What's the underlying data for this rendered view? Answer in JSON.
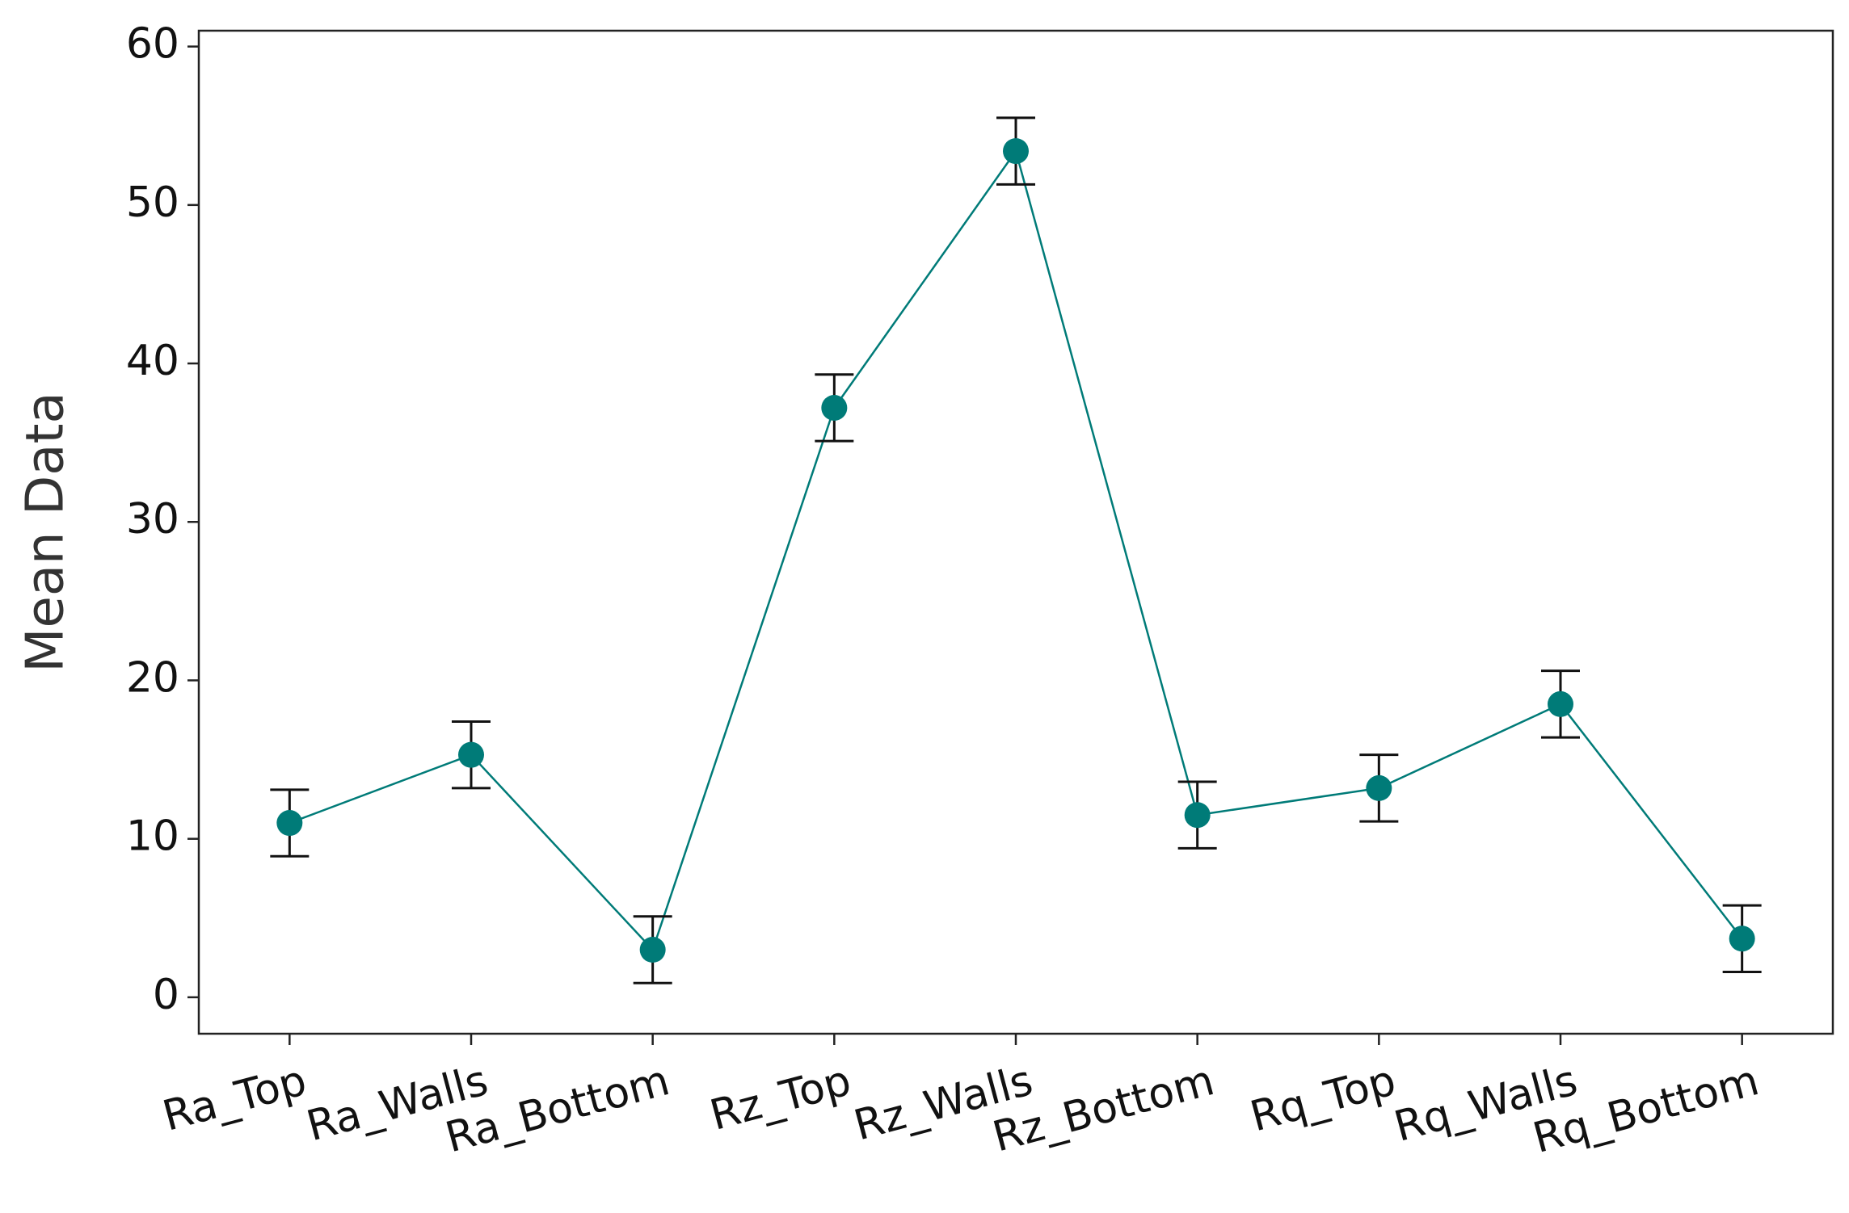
{
  "chart_data": {
    "type": "line",
    "y_label": "Mean Data",
    "categories": [
      "Ra_Top",
      "Ra_Walls",
      "Ra_Bottom",
      "Rz_Top",
      "Rz_Walls",
      "Rz_Bottom",
      "Rq_Top",
      "Rq_Walls",
      "Rq_Bottom"
    ],
    "series": [
      {
        "color": "#007b78",
        "values": [
          11.0,
          15.3,
          3.0,
          37.2,
          53.4,
          11.5,
          13.2,
          18.5,
          3.7
        ],
        "errors": [
          2.1,
          2.1,
          2.1,
          2.1,
          2.1,
          2.1,
          2.1,
          2.1,
          2.1
        ]
      }
    ],
    "ylim": [
      -2.3,
      61
    ],
    "yticks": [
      0,
      10,
      20,
      30,
      40,
      50,
      60
    ],
    "grid": false
  }
}
